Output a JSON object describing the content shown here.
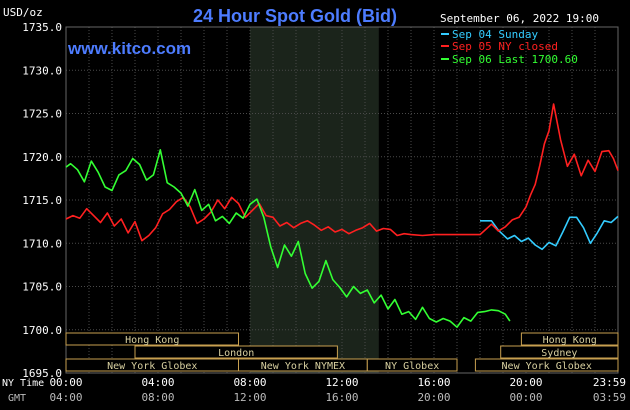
{
  "chart_data": {
    "type": "line",
    "title": "24 Hour Spot Gold (Bid)",
    "ylabel": "USD/oz",
    "watermark": "www.kitco.com",
    "timestamp": "September 06, 2022 19:00",
    "ylim": [
      1695,
      1735
    ],
    "yticks": [
      1695,
      1700,
      1705,
      1710,
      1715,
      1720,
      1725,
      1730,
      1735
    ],
    "ytick_labels": [
      "1695.0",
      "1700.0",
      "1705.0",
      "1710.0",
      "1715.0",
      "1720.0",
      "1725.0",
      "1730.0",
      "1735.0"
    ],
    "xlim": [
      0,
      24
    ],
    "xticks": [
      0,
      4,
      8,
      12,
      16,
      20,
      24
    ],
    "axis_row_labels": {
      "ny_time": "NY Time",
      "gmt": "GMT"
    },
    "ny_time_labels": [
      "00:00",
      "04:00",
      "08:00",
      "12:00",
      "16:00",
      "20:00",
      "23:59"
    ],
    "gmt_labels": [
      "04:00",
      "08:00",
      "12:00",
      "16:00",
      "20:00",
      "00:00",
      "03:59"
    ],
    "highlight_range": [
      8.0,
      13.6
    ],
    "grid": true,
    "legend_position": "top-right",
    "series": [
      {
        "name": "Sep 04 Sunday",
        "color": "#33ccff",
        "x": [
          18,
          18.5,
          18.8,
          19.2,
          19.5,
          19.8,
          20.1,
          20.4,
          20.7,
          21.0,
          21.3,
          21.6,
          21.9,
          22.2,
          22.5,
          22.8,
          23.1,
          23.4,
          23.7,
          24.0
        ],
        "values": [
          1712.6,
          1712.6,
          1711.5,
          1710.5,
          1710.9,
          1710.2,
          1710.6,
          1709.8,
          1709.3,
          1710.1,
          1709.7,
          1711.3,
          1713.0,
          1713.0,
          1711.8,
          1710.0,
          1711.2,
          1712.6,
          1712.4,
          1713.1
        ]
      },
      {
        "name": "Sep 05 NY closed",
        "color": "#ff2020",
        "x": [
          0,
          0.3,
          0.6,
          0.9,
          1.2,
          1.5,
          1.8,
          2.1,
          2.4,
          2.7,
          3.0,
          3.3,
          3.6,
          3.9,
          4.2,
          4.5,
          4.8,
          5.1,
          5.4,
          5.7,
          6.0,
          6.3,
          6.6,
          6.9,
          7.2,
          7.5,
          7.8,
          8.1,
          8.4,
          8.7,
          9.0,
          9.3,
          9.6,
          9.9,
          10.2,
          10.5,
          10.8,
          11.1,
          11.4,
          11.7,
          12.0,
          12.3,
          12.6,
          12.9,
          13.2,
          13.5,
          13.8,
          14.1,
          14.4,
          14.7,
          15.0,
          15.5,
          16.0,
          17.0,
          18.0,
          18.5,
          18.8,
          19.1,
          19.4,
          19.7,
          20.0,
          20.2,
          20.4,
          20.6,
          20.8,
          21.0,
          21.2,
          21.5,
          21.8,
          22.1,
          22.4,
          22.7,
          23.0,
          23.3,
          23.6,
          23.8,
          24.0
        ],
        "values": [
          1712.8,
          1713.2,
          1712.9,
          1714.0,
          1713.2,
          1712.4,
          1713.5,
          1712.0,
          1712.8,
          1711.2,
          1712.5,
          1710.3,
          1710.9,
          1711.8,
          1713.4,
          1713.9,
          1714.8,
          1715.3,
          1714.2,
          1712.3,
          1712.8,
          1713.6,
          1715.0,
          1714.0,
          1715.3,
          1714.6,
          1713.0,
          1713.8,
          1714.6,
          1713.2,
          1713.0,
          1712.0,
          1712.4,
          1711.8,
          1712.3,
          1712.6,
          1712.1,
          1711.5,
          1711.9,
          1711.3,
          1711.6,
          1711.1,
          1711.5,
          1711.8,
          1712.3,
          1711.4,
          1711.7,
          1711.6,
          1710.9,
          1711.1,
          1711.0,
          1710.9,
          1711.0,
          1711.0,
          1711.0,
          1712.2,
          1711.4,
          1711.9,
          1712.7,
          1713.0,
          1714.2,
          1715.6,
          1716.8,
          1719.0,
          1721.5,
          1723.0,
          1726.1,
          1722.0,
          1718.9,
          1720.3,
          1717.8,
          1719.6,
          1718.3,
          1720.6,
          1720.7,
          1719.8,
          1718.4
        ]
      },
      {
        "name": "Sep 06 Last 1700.60",
        "color": "#33ff33",
        "x": [
          0,
          0.2,
          0.5,
          0.8,
          1.1,
          1.4,
          1.7,
          2.0,
          2.3,
          2.6,
          2.9,
          3.2,
          3.5,
          3.8,
          4.1,
          4.4,
          4.7,
          5.0,
          5.3,
          5.6,
          5.9,
          6.2,
          6.5,
          6.8,
          7.1,
          7.4,
          7.7,
          8.0,
          8.3,
          8.6,
          8.9,
          9.2,
          9.5,
          9.8,
          10.1,
          10.4,
          10.7,
          11.0,
          11.3,
          11.6,
          11.9,
          12.2,
          12.5,
          12.8,
          13.1,
          13.4,
          13.7,
          14.0,
          14.3,
          14.6,
          14.9,
          15.2,
          15.5,
          15.8,
          16.1,
          16.4,
          16.7,
          17.0,
          17.3,
          17.6,
          17.9,
          18.2,
          18.5,
          18.8,
          19.1,
          19.3
        ],
        "values": [
          1718.8,
          1719.2,
          1718.5,
          1717.1,
          1719.5,
          1718.2,
          1716.5,
          1716.1,
          1717.9,
          1718.4,
          1719.8,
          1719.1,
          1717.3,
          1717.9,
          1720.8,
          1717.0,
          1716.5,
          1715.8,
          1714.3,
          1716.2,
          1713.8,
          1714.5,
          1712.6,
          1713.1,
          1712.3,
          1713.5,
          1712.9,
          1714.5,
          1715.1,
          1713.0,
          1709.6,
          1707.2,
          1709.8,
          1708.5,
          1710.2,
          1706.5,
          1704.8,
          1705.6,
          1708.0,
          1705.8,
          1704.9,
          1703.8,
          1705.0,
          1704.2,
          1704.6,
          1703.1,
          1704.0,
          1702.4,
          1703.5,
          1701.8,
          1702.1,
          1701.2,
          1702.6,
          1701.3,
          1700.9,
          1701.3,
          1701.0,
          1700.3,
          1701.4,
          1701.0,
          1702.0,
          1702.1,
          1702.3,
          1702.2,
          1701.8,
          1701.0
        ]
      }
    ],
    "sessions": {
      "row1": [
        {
          "label": "Hong Kong",
          "start": 0,
          "end": 7.5
        },
        {
          "label": "Hong Kong",
          "start": 19.8,
          "end": 24
        }
      ],
      "row2": [
        {
          "label": "London",
          "start": 3.0,
          "end": 11.8
        },
        {
          "label": "Sydney",
          "start": 18.9,
          "end": 24
        }
      ],
      "row3": [
        {
          "label": "New York Globex",
          "start": 0,
          "end": 7.5
        },
        {
          "label": "New York NYMEX",
          "start": 7.5,
          "end": 13.1
        },
        {
          "label": "NY Globex",
          "start": 13.1,
          "end": 17.0
        },
        {
          "label": "New York Globex",
          "start": 17.8,
          "end": 24
        }
      ]
    }
  }
}
